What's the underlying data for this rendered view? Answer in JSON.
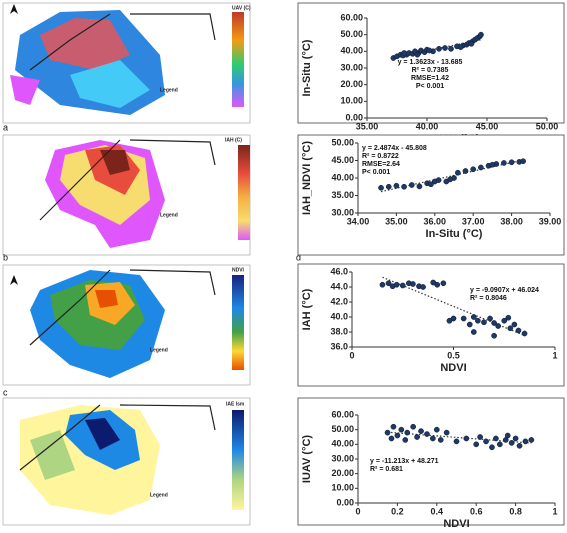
{
  "panel_labels": [
    "a",
    "b",
    "c",
    "d"
  ],
  "maps": [
    {
      "legend_title": "UAV (C)",
      "legend_label": "Legend"
    },
    {
      "legend_title": "IAH (C)",
      "legend_label": "Legend"
    },
    {
      "legend_title": "NDVI",
      "legend_label": "Legend"
    },
    {
      "legend_title": "IAE lsm",
      "legend_label": "Legend"
    }
  ],
  "chart_data": [
    {
      "type": "scatter",
      "xlabel": "UAV (°C)",
      "ylabel": "In-Situ (°C)",
      "annotation": [
        "y = 1.3623x - 13.685",
        "R² = 0.7385",
        "RMSE=1.42",
        "P< 0.001"
      ],
      "xlim": [
        35,
        50
      ],
      "ylim": [
        0,
        60
      ],
      "xticks": [
        {
          "value": 35,
          "label": "35.00"
        },
        {
          "value": 40,
          "label": "40.00"
        },
        {
          "value": 45,
          "label": "45.00"
        },
        {
          "value": 50,
          "label": "50.00"
        }
      ],
      "yticks": [
        {
          "value": 0,
          "label": "0.00"
        },
        {
          "value": 10,
          "label": "10.00"
        },
        {
          "value": 20,
          "label": "20.00"
        },
        {
          "value": 30,
          "label": "30.00"
        },
        {
          "value": 40,
          "label": "40.00"
        },
        {
          "value": 50,
          "label": "50.00"
        },
        {
          "value": 60,
          "label": "60.00"
        }
      ],
      "color": "#1f3864",
      "x": [
        37.2,
        37.5,
        37.8,
        38,
        38.3,
        38.5,
        38.8,
        39,
        39.3,
        39.5,
        39.8,
        40,
        40.5,
        41,
        41.5,
        42,
        42.5,
        43,
        43.3,
        43.5,
        43.8,
        44,
        44.2,
        44.4,
        44.5,
        43.7,
        42.8,
        39.2,
        38.1,
        40.2
      ],
      "values": [
        36,
        37,
        38,
        37.5,
        38,
        39,
        38.5,
        40,
        39,
        40.5,
        39.5,
        41,
        40,
        41.5,
        42,
        41.5,
        43,
        43.5,
        44,
        45,
        46,
        47,
        48,
        49,
        50,
        44.5,
        42.5,
        38,
        39,
        40.5
      ]
    },
    {
      "type": "scatter",
      "xlabel": "In-Situ (°C)",
      "ylabel": "IAH_NDVI (°C)",
      "annotation": [
        "y = 2.4874x - 45.808",
        "R² = 0.8722",
        "RMSE=2.64",
        "P< 0.001"
      ],
      "xlim": [
        34,
        39
      ],
      "ylim": [
        30,
        50
      ],
      "xticks": [
        {
          "value": 34,
          "label": "34.00"
        },
        {
          "value": 35,
          "label": "35.00"
        },
        {
          "value": 36,
          "label": "36.00"
        },
        {
          "value": 37,
          "label": "37.00"
        },
        {
          "value": 38,
          "label": "38.00"
        },
        {
          "value": 39,
          "label": "39.00"
        }
      ],
      "yticks": [
        {
          "value": 30,
          "label": "30.00"
        },
        {
          "value": 35,
          "label": "35.00"
        },
        {
          "value": 40,
          "label": "40.00"
        },
        {
          "value": 45,
          "label": "45.00"
        },
        {
          "value": 50,
          "label": "50.00"
        }
      ],
      "color": "#1f3864",
      "x": [
        34.6,
        34.8,
        35,
        35.2,
        35.4,
        35.6,
        35.8,
        36,
        36.1,
        36.3,
        36.5,
        36.6,
        36.8,
        37,
        37.2,
        37.4,
        37.6,
        37.8,
        38,
        38.2,
        38.3,
        36.4,
        35.9,
        37.5
      ],
      "values": [
        37.2,
        37.5,
        37.8,
        37.5,
        38,
        37.6,
        38.5,
        39,
        39.4,
        39,
        40,
        41.5,
        42,
        42.5,
        43,
        43.5,
        44,
        44.3,
        44.5,
        44.6,
        44.8,
        39.6,
        38.2,
        43.8
      ]
    },
    {
      "type": "scatter",
      "xlabel": "NDVI",
      "ylabel": "IAH (°C)",
      "annotation": [
        "y = -9.0907x + 46.024",
        "R² = 0.8046"
      ],
      "xlim": [
        0,
        1
      ],
      "ylim": [
        36,
        46
      ],
      "xticks": [
        0,
        0.5,
        1
      ],
      "yticks": [
        {
          "value": 36,
          "label": "36.0"
        },
        {
          "value": 38,
          "label": "38.0"
        },
        {
          "value": 40,
          "label": "40.0"
        },
        {
          "value": 42,
          "label": "42.0"
        },
        {
          "value": 44,
          "label": "44.0"
        },
        {
          "value": 46,
          "label": "46.0"
        }
      ],
      "color": "#1f3864",
      "x": [
        0.15,
        0.18,
        0.2,
        0.22,
        0.25,
        0.28,
        0.3,
        0.33,
        0.35,
        0.4,
        0.45,
        0.48,
        0.55,
        0.58,
        0.6,
        0.62,
        0.65,
        0.68,
        0.7,
        0.72,
        0.75,
        0.78,
        0.8,
        0.82,
        0.85,
        0.7,
        0.6,
        0.5,
        0.42,
        0.77
      ],
      "values": [
        44.3,
        44.5,
        44.1,
        44.3,
        44.2,
        44.5,
        44.4,
        44.1,
        44,
        44.6,
        44.5,
        39.5,
        39.8,
        39,
        40,
        39.5,
        39.3,
        39.8,
        39.2,
        38.8,
        39.5,
        38.5,
        39,
        38.2,
        37.8,
        37.5,
        38,
        39.8,
        44.3,
        39.9
      ]
    },
    {
      "type": "scatter",
      "xlabel": "NDVI",
      "ylabel": "IUAV (°C)",
      "annotation": [
        "y = -11.213x + 48.271",
        "R² = 0.681"
      ],
      "xlim": [
        0,
        1
      ],
      "ylim": [
        0,
        60
      ],
      "xticks": [
        0,
        0.2,
        0.4,
        0.6,
        0.8,
        1
      ],
      "yticks": [
        {
          "value": 0,
          "label": "0.00"
        },
        {
          "value": 10,
          "label": "10.00"
        },
        {
          "value": 20,
          "label": "20.00"
        },
        {
          "value": 30,
          "label": "30.00"
        },
        {
          "value": 40,
          "label": "40.00"
        },
        {
          "value": 50,
          "label": "50.00"
        },
        {
          "value": 60,
          "label": "60.00"
        }
      ],
      "color": "#1f3864",
      "x": [
        0.15,
        0.17,
        0.18,
        0.2,
        0.22,
        0.24,
        0.25,
        0.28,
        0.3,
        0.32,
        0.35,
        0.38,
        0.4,
        0.42,
        0.45,
        0.5,
        0.55,
        0.6,
        0.65,
        0.7,
        0.72,
        0.75,
        0.78,
        0.8,
        0.82,
        0.85,
        0.88,
        0.62,
        0.68,
        0.76
      ],
      "values": [
        48,
        44,
        52,
        46,
        50,
        43,
        48,
        52,
        45,
        49,
        47,
        44,
        50,
        43,
        48,
        42,
        44,
        40,
        42,
        44,
        40,
        43,
        41,
        44,
        39,
        42,
        43,
        45,
        38,
        46
      ]
    }
  ]
}
